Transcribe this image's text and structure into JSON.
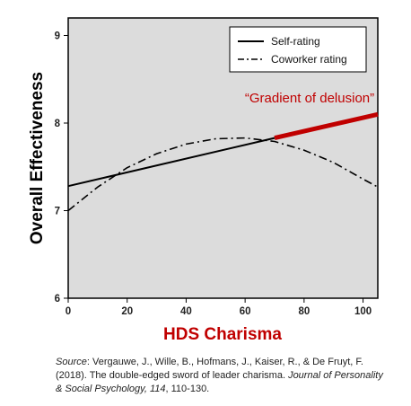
{
  "chart_data": {
    "type": "line",
    "ylabel": "Overall Effectiveness",
    "xlabel": "HDS Charisma",
    "xlim": [
      0,
      105
    ],
    "ylim": [
      6,
      9.2
    ],
    "x_ticks": [
      0,
      20,
      40,
      60,
      80,
      100
    ],
    "y_ticks": [
      6,
      7,
      8,
      9
    ],
    "grid": false,
    "legend_position": "top-right",
    "series": [
      {
        "name": "Self-rating",
        "style": "solid",
        "color": "#000000",
        "x": [
          0,
          70
        ],
        "y": [
          7.28,
          7.83
        ]
      },
      {
        "name": "Coworker rating",
        "style": "dash-dot",
        "color": "#000000",
        "x": [
          0,
          10,
          20,
          30,
          40,
          50,
          60,
          70,
          80,
          90,
          100,
          105
        ],
        "y": [
          7.0,
          7.27,
          7.49,
          7.65,
          7.76,
          7.82,
          7.83,
          7.79,
          7.69,
          7.55,
          7.36,
          7.27
        ]
      },
      {
        "style": "solid-thick",
        "color": "#c00000",
        "x": [
          70,
          105
        ],
        "y": [
          7.83,
          8.1
        ]
      }
    ],
    "annotations": [
      {
        "text": "“Gradient of delusion”",
        "color": "#c00000"
      }
    ]
  },
  "source": {
    "label": "Source",
    "citation_plain": ": Vergauwe, J., Wille, B., Hofmans, J., Kaiser, R., & De Fruyt, F. (2018).  The double-edged sword of leader charisma. ",
    "journal": "Journal of Personality & Social Psychology,",
    "volume": "114",
    "pages": ", 110-130."
  }
}
